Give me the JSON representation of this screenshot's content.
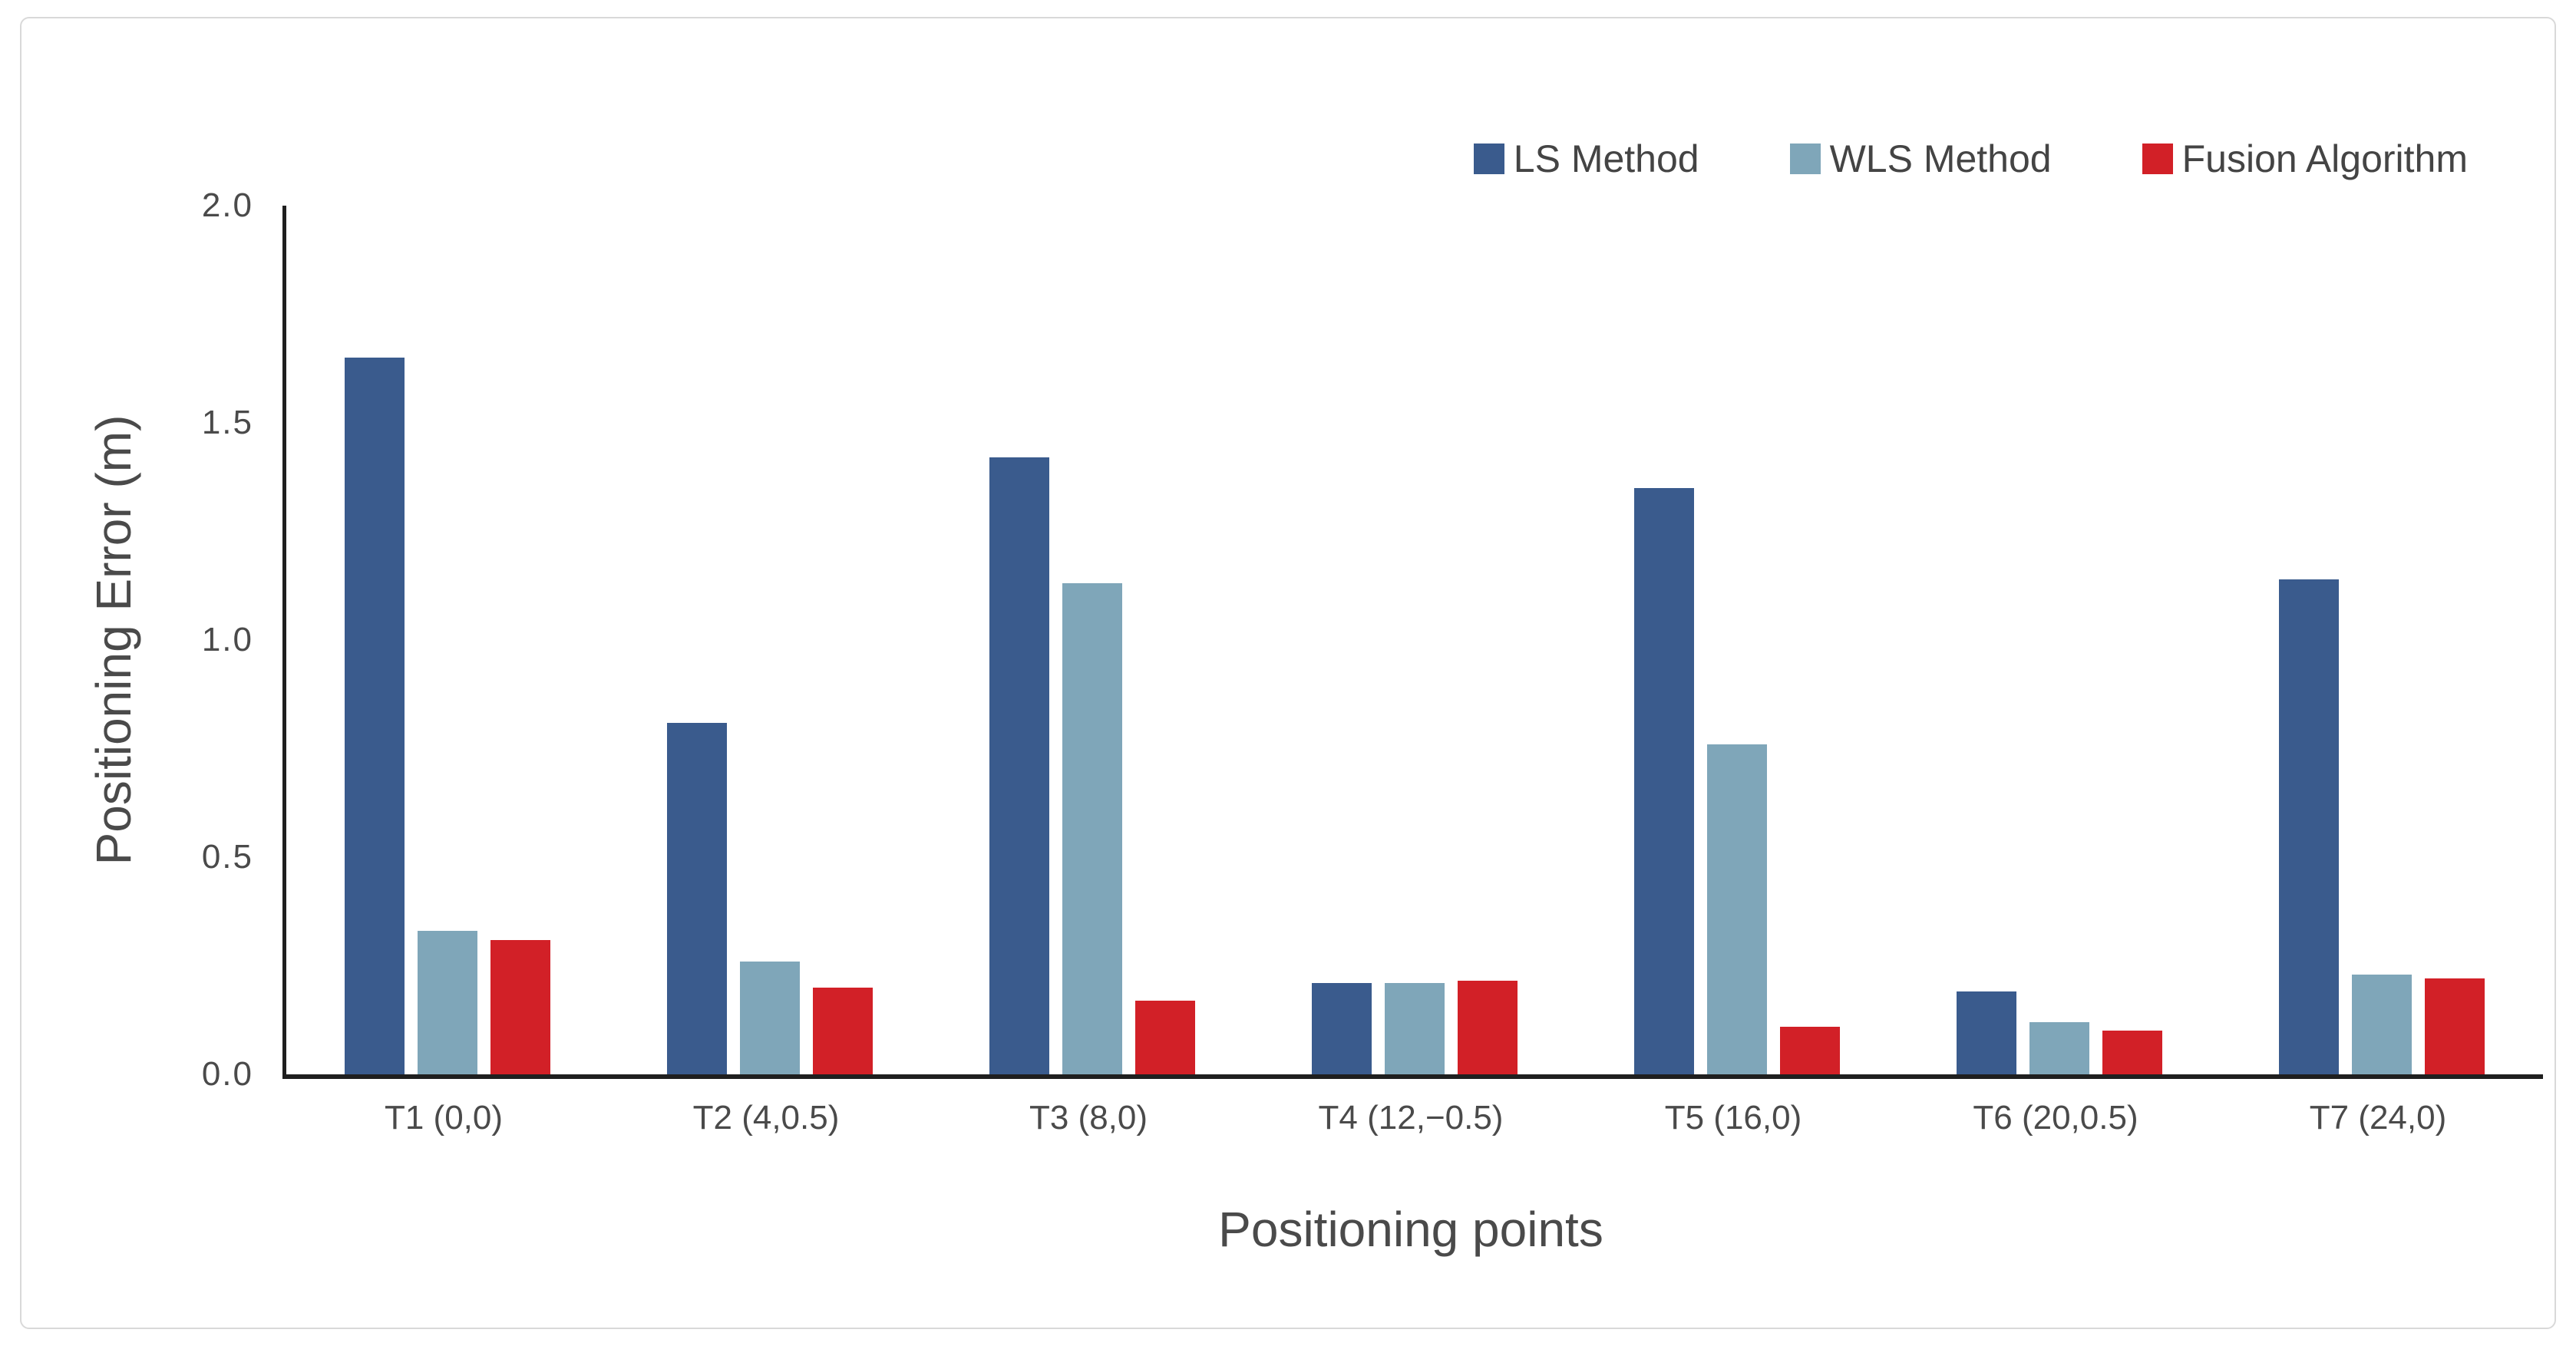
{
  "chart_data": {
    "type": "bar",
    "title": "",
    "xlabel": "Positioning points",
    "ylabel": "Positioning Error (m)",
    "ylim": [
      0,
      2.0
    ],
    "yticks": [
      "0.0",
      "0.5",
      "1.0",
      "1.5",
      "2.0"
    ],
    "grid": false,
    "legend_position": "top-right",
    "categories": [
      "T1 (0,0)",
      "T2 (4,0.5)",
      "T3 (8,0)",
      "T4 (12,−0.5)",
      "T5 (16,0)",
      "T6 (20,0.5)",
      "T7 (24,0)"
    ],
    "series": [
      {
        "name": "LS Method",
        "color": "#3a5b8d",
        "values": [
          1.65,
          0.81,
          1.42,
          0.21,
          1.35,
          0.19,
          1.14
        ]
      },
      {
        "name": "WLS Method",
        "color": "#7fa6b9",
        "values": [
          0.33,
          0.26,
          1.13,
          0.21,
          0.76,
          0.12,
          0.23
        ]
      },
      {
        "name": "Fusion Algorithm",
        "color": "#d22027",
        "values": [
          0.31,
          0.2,
          0.17,
          0.215,
          0.11,
          0.1,
          0.22
        ]
      }
    ]
  },
  "colors": {
    "axis_line": "#1f1f1f",
    "text": "#4a4a4a",
    "frame_border": "#d9d9d9",
    "background": "#ffffff"
  }
}
